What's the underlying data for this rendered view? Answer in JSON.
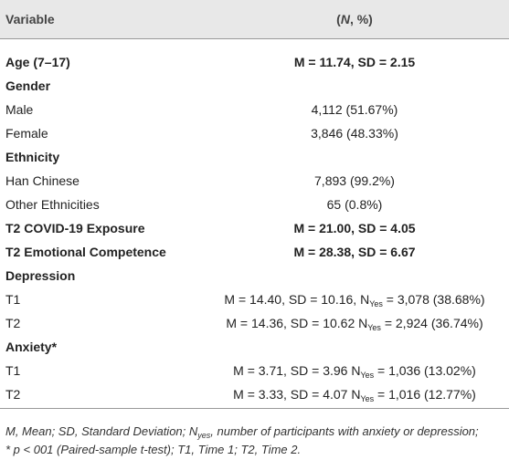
{
  "table": {
    "header": {
      "variable": "Variable",
      "value": {
        "pre": "(",
        "em": "N",
        "post": ", %)"
      }
    },
    "rows": [
      {
        "variable": "Age (7–17)",
        "bold": true,
        "value": "M = 11.74, SD = 2.15"
      },
      {
        "variable": "Gender",
        "bold": true
      },
      {
        "variable": "Male",
        "value": "4,112 (51.67%)"
      },
      {
        "variable": "Female",
        "value": "3,846 (48.33%)"
      },
      {
        "variable": "Ethnicity",
        "bold": true
      },
      {
        "variable": "Han Chinese",
        "value": "7,893 (99.2%)"
      },
      {
        "variable": "Other Ethnicities",
        "value": "65 (0.8%)"
      },
      {
        "variable": "T2 COVID-19 Exposure",
        "bold": true,
        "value": "M = 21.00, SD = 4.05"
      },
      {
        "variable": "T2 Emotional Competence",
        "bold": true,
        "value": "M = 28.38, SD = 6.67"
      },
      {
        "variable": "Depression",
        "bold": true
      },
      {
        "variable": "T1",
        "value": {
          "pre": "M = 14.40, SD = 10.16, N",
          "sub": "Yes",
          "post": " = 3,078 (38.68%)"
        }
      },
      {
        "variable": "T2",
        "value": {
          "pre": "M = 14.36, SD = 10.62 N",
          "sub": "Yes",
          "post": " = 2,924 (36.74%)"
        }
      },
      {
        "variable": "Anxiety*",
        "bold": true
      },
      {
        "variable": "T1",
        "value": {
          "pre": "M = 3.71, SD = 3.96 N",
          "sub": "Yes",
          "post": " = 1,036 (13.02%)"
        }
      },
      {
        "variable": "T2",
        "value": {
          "pre": "M = 3.33, SD = 4.07 N",
          "sub": "Yes",
          "post": " = 1,016 (12.77%)"
        }
      }
    ]
  },
  "footnote": [
    {
      "pre": "M, Mean; SD, Standard Deviation; N",
      "sub": "yes",
      "post": ", number of participants with anxiety or depression;"
    },
    {
      "pre": "* p < 001 (Paired-sample t-test); T1, Time 1; T2, Time 2."
    }
  ]
}
